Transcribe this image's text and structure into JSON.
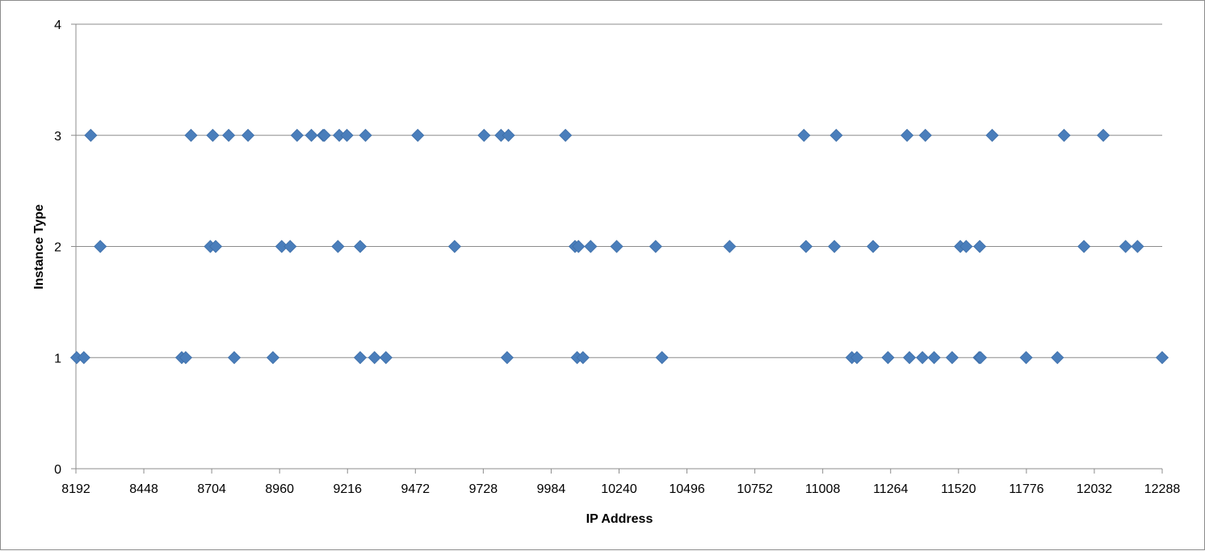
{
  "chart_data": {
    "type": "scatter",
    "title": "",
    "xlabel": "IP Address",
    "ylabel": "Instance Type",
    "xlim": [
      8192,
      12288
    ],
    "ylim": [
      0,
      4
    ],
    "x_ticks": [
      8192,
      8448,
      8704,
      8960,
      9216,
      9472,
      9728,
      9984,
      10240,
      10496,
      10752,
      11008,
      11264,
      11520,
      11776,
      12032,
      12288
    ],
    "y_ticks": [
      0,
      1,
      2,
      3,
      4
    ],
    "grid": "horizontal",
    "legend": "none",
    "marker": "diamond",
    "marker_color": "#4a7ebb",
    "gridline_color": "#8c8c8c",
    "series": [
      {
        "points": [
          [
            8248,
            3
          ],
          [
            8626,
            3
          ],
          [
            8708,
            3
          ],
          [
            8768,
            3
          ],
          [
            8841,
            3
          ],
          [
            9026,
            3
          ],
          [
            9080,
            3
          ],
          [
            9124,
            3
          ],
          [
            9129,
            3
          ],
          [
            9185,
            3
          ],
          [
            9214,
            3
          ],
          [
            9284,
            3
          ],
          [
            9481,
            3
          ],
          [
            9731,
            3
          ],
          [
            9795,
            3
          ],
          [
            9823,
            3
          ],
          [
            10038,
            3
          ],
          [
            10937,
            3
          ],
          [
            11059,
            3
          ],
          [
            11326,
            3
          ],
          [
            11395,
            3
          ],
          [
            11647,
            3
          ],
          [
            11918,
            3
          ],
          [
            12066,
            3
          ],
          [
            8284,
            2
          ],
          [
            8699,
            2
          ],
          [
            8719,
            2
          ],
          [
            8968,
            2
          ],
          [
            9000,
            2
          ],
          [
            9180,
            2
          ],
          [
            9264,
            2
          ],
          [
            9620,
            2
          ],
          [
            10074,
            2
          ],
          [
            10087,
            2
          ],
          [
            10133,
            2
          ],
          [
            10231,
            2
          ],
          [
            10378,
            2
          ],
          [
            10657,
            2
          ],
          [
            10945,
            2
          ],
          [
            11052,
            2
          ],
          [
            11198,
            2
          ],
          [
            11527,
            2
          ],
          [
            11549,
            2
          ],
          [
            11600,
            2
          ],
          [
            11993,
            2
          ],
          [
            12150,
            2
          ],
          [
            12195,
            2
          ],
          [
            8195,
            1
          ],
          [
            8222,
            1
          ],
          [
            8591,
            1
          ],
          [
            8606,
            1
          ],
          [
            8789,
            1
          ],
          [
            8935,
            1
          ],
          [
            9264,
            1
          ],
          [
            9318,
            1
          ],
          [
            9361,
            1
          ],
          [
            9818,
            1
          ],
          [
            10082,
            1
          ],
          [
            10104,
            1
          ],
          [
            10402,
            1
          ],
          [
            11118,
            1
          ],
          [
            11137,
            1
          ],
          [
            11254,
            1
          ],
          [
            11335,
            1
          ],
          [
            11384,
            1
          ],
          [
            11428,
            1
          ],
          [
            11496,
            1
          ],
          [
            11598,
            1
          ],
          [
            11603,
            1
          ],
          [
            11775,
            1
          ],
          [
            11893,
            1
          ],
          [
            12288,
            1
          ]
        ]
      }
    ]
  }
}
